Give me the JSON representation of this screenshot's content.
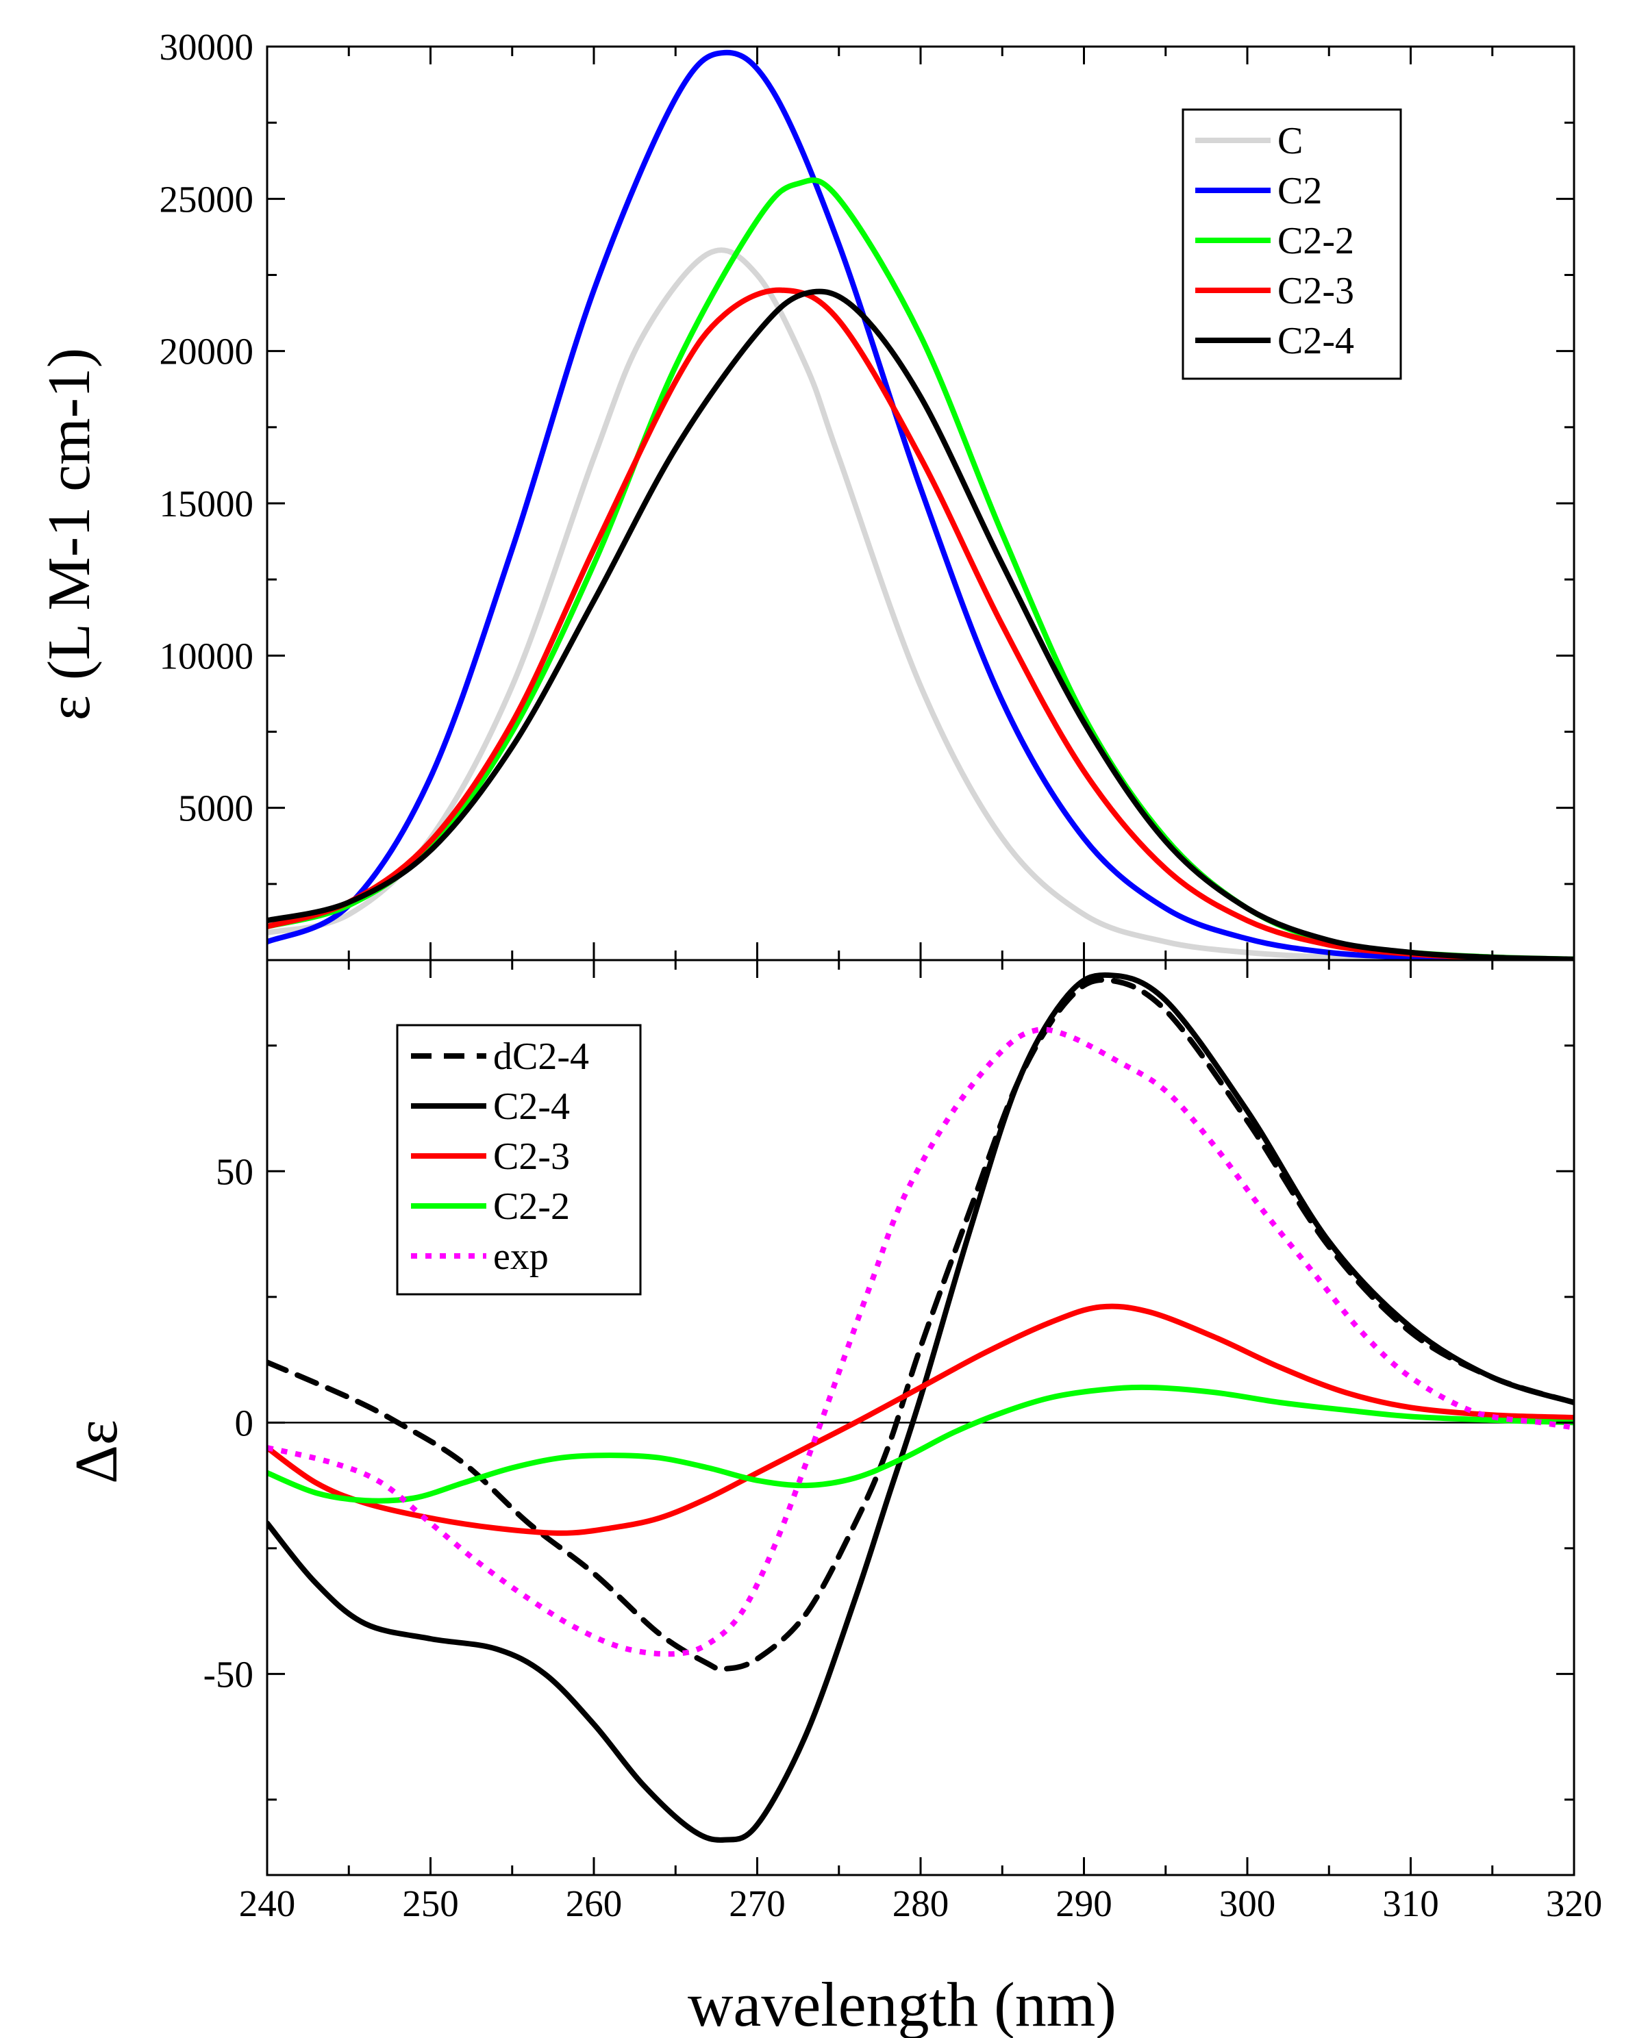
{
  "chart_data": [
    {
      "type": "line",
      "panel": "top",
      "title": "",
      "xlabel": "wavelength (nm)",
      "ylabel": "ε (L M-1 cm-1)",
      "xlim": [
        240,
        320
      ],
      "ylim": [
        0,
        30000
      ],
      "yticks": [
        5000,
        10000,
        15000,
        20000,
        25000,
        30000
      ],
      "xticks": [
        240,
        250,
        260,
        270,
        280,
        290,
        300,
        310,
        320
      ],
      "legend_position": "top-right",
      "series": [
        {
          "name": "C",
          "color": "#d6d6d6",
          "dash": "solid",
          "x": [
            240,
            245,
            250,
            255,
            260,
            263,
            267,
            270,
            273,
            275,
            280,
            285,
            290,
            295,
            300,
            305,
            310,
            315,
            320
          ],
          "y": [
            900,
            1500,
            4000,
            9000,
            16500,
            20500,
            23200,
            22500,
            19500,
            16500,
            9000,
            4000,
            1500,
            600,
            250,
            100,
            50,
            20,
            10
          ]
        },
        {
          "name": "C2",
          "color": "#0000ff",
          "dash": "solid",
          "x": [
            240,
            245,
            250,
            255,
            260,
            265,
            268,
            271,
            275,
            280,
            285,
            290,
            295,
            300,
            305,
            310,
            315,
            320
          ],
          "y": [
            600,
            1800,
            6000,
            13500,
            22000,
            28300,
            29800,
            28500,
            23500,
            15500,
            8500,
            4000,
            1700,
            700,
            250,
            90,
            30,
            10
          ]
        },
        {
          "name": "C2-2",
          "color": "#00ff00",
          "dash": "solid",
          "x": [
            240,
            245,
            250,
            255,
            260,
            265,
            270,
            272.5,
            275,
            280,
            285,
            290,
            295,
            300,
            305,
            310,
            315,
            320
          ],
          "y": [
            1100,
            1800,
            3700,
            7500,
            13000,
            19500,
            24300,
            25500,
            25000,
            20500,
            14000,
            8000,
            4000,
            1700,
            600,
            250,
            100,
            30
          ]
        },
        {
          "name": "C2-3",
          "color": "#ff0000",
          "dash": "solid",
          "x": [
            240,
            245,
            250,
            255,
            260,
            265,
            268,
            271.5,
            275,
            280,
            285,
            290,
            295,
            300,
            305,
            310,
            315,
            320
          ],
          "y": [
            1100,
            1900,
            3900,
            7800,
            13500,
            19000,
            21200,
            22000,
            21000,
            16500,
            11000,
            6200,
            3000,
            1300,
            500,
            200,
            80,
            20
          ]
        },
        {
          "name": "C2-4",
          "color": "#000000",
          "dash": "solid",
          "x": [
            240,
            245,
            250,
            255,
            260,
            265,
            270,
            273,
            276,
            280,
            285,
            290,
            295,
            300,
            305,
            310,
            315,
            320
          ],
          "y": [
            1300,
            1900,
            3600,
            7000,
            11800,
            16800,
            20600,
            21900,
            21400,
            18500,
            13000,
            7800,
            3900,
            1700,
            650,
            250,
            90,
            30
          ]
        }
      ]
    },
    {
      "type": "line",
      "panel": "bottom",
      "title": "",
      "xlabel": "wavelength (nm)",
      "ylabel": "Δε",
      "xlim": [
        240,
        320
      ],
      "ylim": [
        -90,
        92
      ],
      "yticks": [
        -50,
        0,
        50
      ],
      "xticks": [
        240,
        250,
        260,
        270,
        280,
        290,
        300,
        310,
        320
      ],
      "zero_line": true,
      "legend_position": "top-left",
      "series": [
        {
          "name": "dC2-4",
          "color": "#000000",
          "dash": "dashed",
          "x": [
            240,
            245,
            248,
            252,
            256,
            260,
            264,
            267,
            268,
            270,
            273,
            276,
            278,
            280,
            283,
            286,
            289,
            291.5,
            295,
            300,
            305,
            310,
            315,
            320
          ],
          "y": [
            12,
            5,
            0,
            -8,
            -20,
            -30,
            -42,
            -48,
            -49,
            -47,
            -38,
            -20,
            -5,
            15,
            42,
            68,
            84,
            88,
            82,
            60,
            35,
            18,
            9,
            4
          ]
        },
        {
          "name": "C2-4",
          "color": "#000000",
          "dash": "solid",
          "x": [
            240,
            243,
            246,
            250,
            254,
            257,
            260,
            263,
            266,
            268,
            270,
            273,
            276,
            278,
            280,
            283,
            286,
            289,
            291.5,
            295,
            300,
            305,
            310,
            315,
            320
          ],
          "y": [
            -20,
            -32,
            -40,
            -43,
            -45,
            -50,
            -60,
            -72,
            -81,
            -83,
            -80,
            -62,
            -35,
            -15,
            5,
            38,
            68,
            85,
            89,
            84,
            62,
            36,
            19,
            9,
            4
          ]
        },
        {
          "name": "C2-3",
          "color": "#ff0000",
          "dash": "solid",
          "x": [
            240,
            243,
            246,
            250,
            254,
            258,
            261,
            264,
            267,
            270,
            273,
            276,
            280,
            284,
            288,
            291,
            294,
            298,
            302,
            306,
            310,
            315,
            320
          ],
          "y": [
            -5,
            -12,
            -16,
            -19,
            -21,
            -22,
            -21,
            -19,
            -15,
            -10,
            -5,
            0,
            7,
            14,
            20,
            23,
            22,
            17,
            11,
            6,
            3,
            1.5,
            1
          ]
        },
        {
          "name": "C2-2",
          "color": "#00ff00",
          "dash": "solid",
          "x": [
            240,
            243,
            246,
            249,
            252,
            255,
            258,
            261,
            264,
            267,
            270,
            273,
            276,
            279,
            282,
            285,
            288,
            291,
            294,
            298,
            302,
            306,
            310,
            315,
            320
          ],
          "y": [
            -10,
            -14,
            -15.5,
            -15,
            -12,
            -9,
            -7,
            -6.5,
            -7,
            -9,
            -11.5,
            -12.5,
            -11,
            -7,
            -2,
            2,
            5,
            6.5,
            7,
            6,
            4,
            2.5,
            1.2,
            0.5,
            0
          ]
        },
        {
          "name": "exp",
          "color": "#ff00ff",
          "dash": "dotted",
          "x": [
            240,
            244,
            247,
            250,
            253,
            256,
            259,
            262,
            265,
            267,
            269,
            271,
            273,
            275,
            277,
            279,
            282,
            285,
            287,
            289,
            292,
            295,
            298,
            301,
            304,
            307,
            310,
            314,
            318,
            320
          ],
          "y": [
            -5,
            -8,
            -12,
            -20,
            -28,
            -35,
            -41,
            -45,
            -46,
            -44,
            -38,
            -25,
            -8,
            10,
            28,
            45,
            62,
            74,
            78,
            77,
            72,
            66,
            55,
            42,
            30,
            18,
            9,
            2,
            0,
            -1
          ]
        }
      ]
    }
  ]
}
